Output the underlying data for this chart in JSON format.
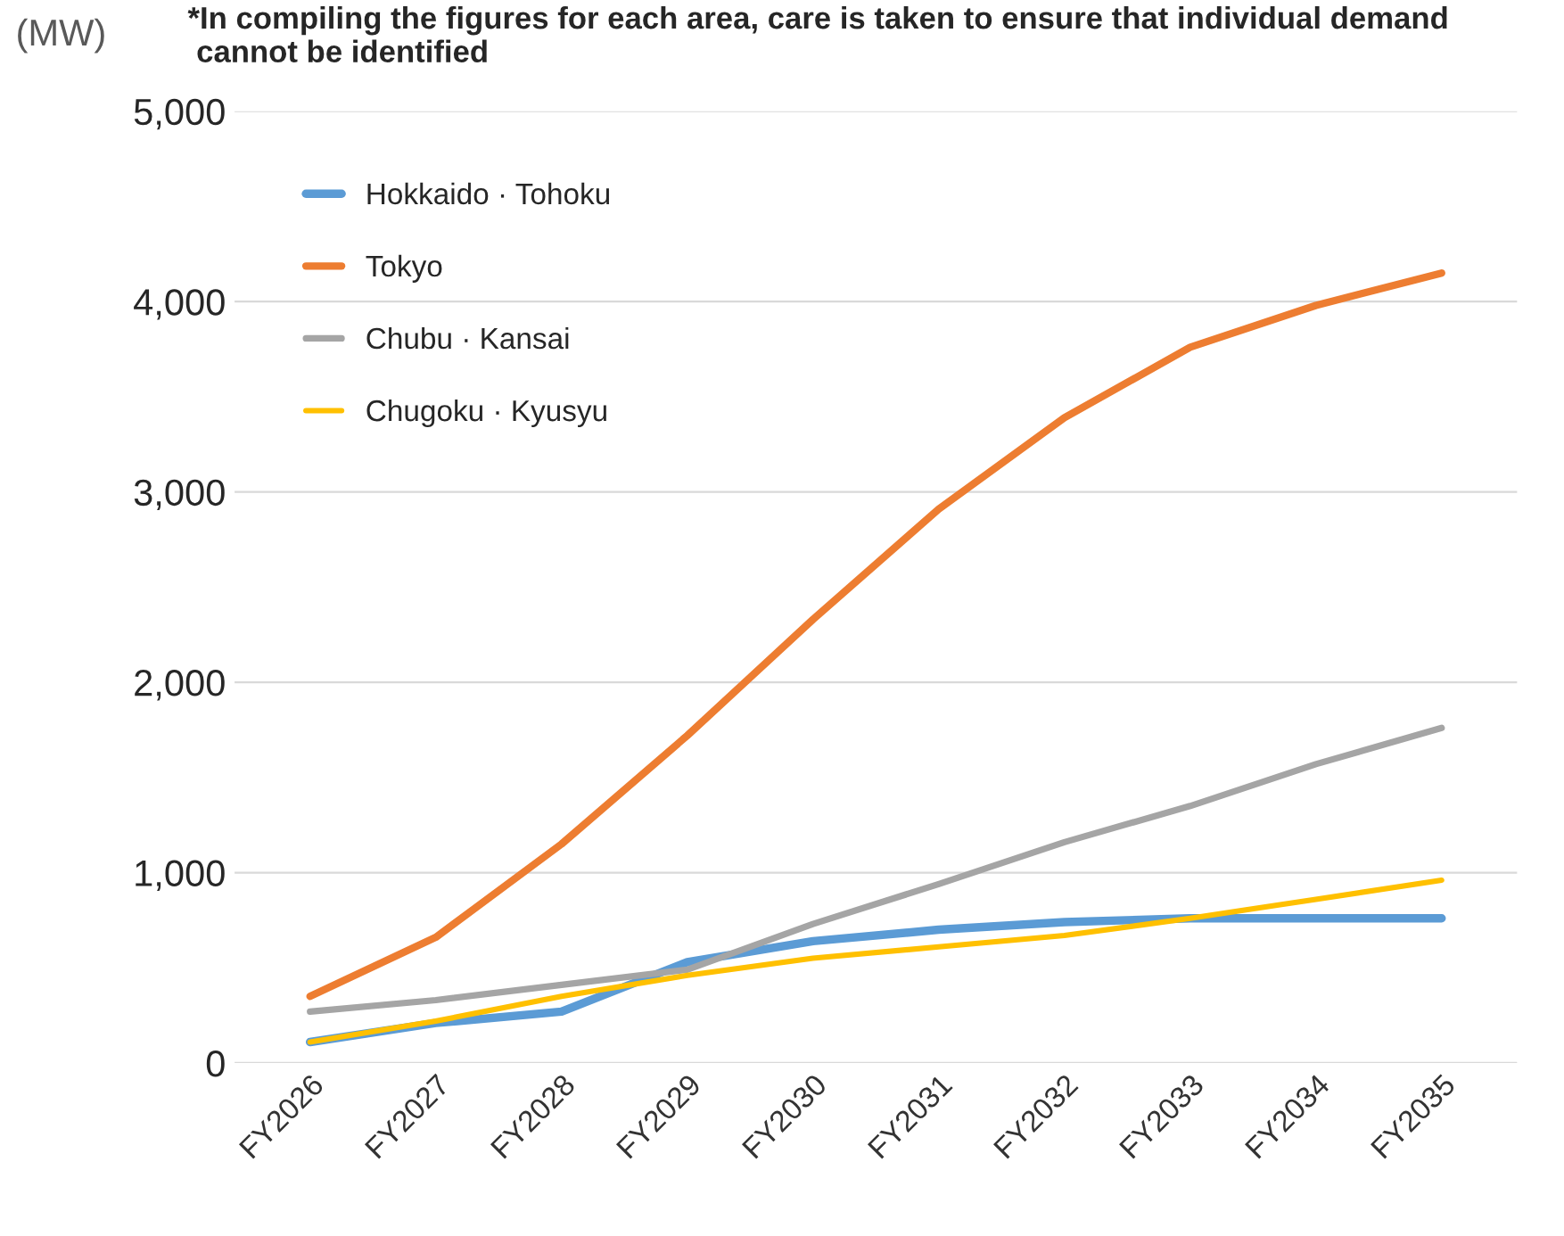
{
  "chart_data": {
    "type": "line",
    "ylabel": "(MW)",
    "annotations": [
      "*In compiling the figures for each area, care is taken to ensure that individual demand\n cannot be identified"
    ],
    "categories": [
      "FY2026",
      "FY2027",
      "FY2028",
      "FY2029",
      "FY2030",
      "FY2031",
      "FY2032",
      "FY2033",
      "FY2034",
      "FY2035"
    ],
    "series": [
      {
        "name": "Hokkaido · Tohoku",
        "color": "#5b9bd5",
        "values": [
          110,
          210,
          270,
          530,
          640,
          700,
          740,
          760,
          760,
          760
        ]
      },
      {
        "name": "Tokyo",
        "color": "#ed7d31",
        "values": [
          350,
          660,
          1150,
          1720,
          2330,
          2910,
          3390,
          3760,
          3980,
          4150
        ]
      },
      {
        "name": "Chubu · Kansai",
        "color": "#a5a5a5",
        "values": [
          270,
          330,
          410,
          490,
          730,
          940,
          1160,
          1350,
          1570,
          1760
        ]
      },
      {
        "name": "Chugoku · Kyusyu",
        "color": "#ffc000",
        "values": [
          110,
          220,
          350,
          460,
          550,
          610,
          670,
          760,
          860,
          960
        ]
      }
    ],
    "ylim": [
      0,
      5000
    ],
    "yticks": [
      {
        "value": 0,
        "label": "0"
      },
      {
        "value": 1000,
        "label": "1,000"
      },
      {
        "value": 2000,
        "label": "2,000"
      },
      {
        "value": 3000,
        "label": "3,000"
      },
      {
        "value": 4000,
        "label": "4,000"
      },
      {
        "value": 5000,
        "label": "5,000"
      }
    ],
    "grid": "y",
    "legend": "top left"
  }
}
